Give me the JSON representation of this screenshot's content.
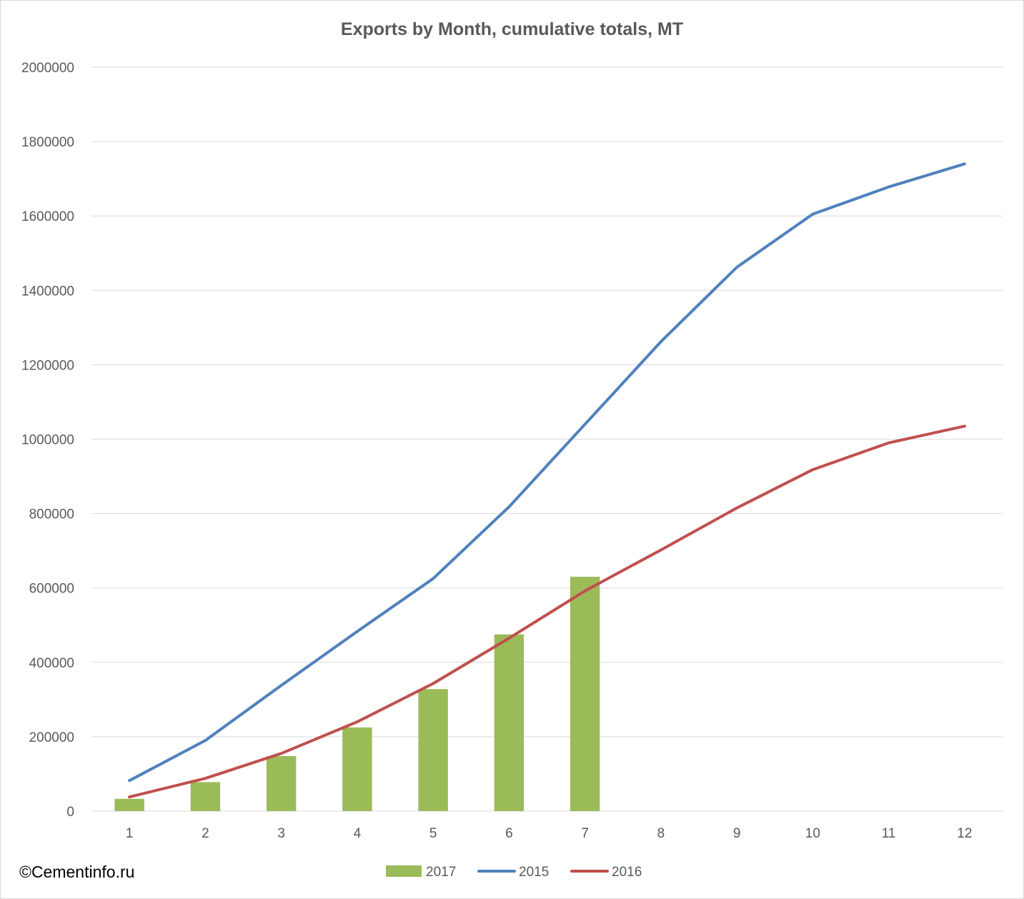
{
  "chart_data": {
    "type": "bar+line",
    "title": "Exports by Month, cumulative totals, MT",
    "xlabel": "",
    "ylabel": "",
    "categories": [
      "1",
      "2",
      "3",
      "4",
      "5",
      "6",
      "7",
      "8",
      "9",
      "10",
      "11",
      "12"
    ],
    "ylim": [
      0,
      2000000
    ],
    "yticks": [
      "0",
      "200000",
      "400000",
      "600000",
      "800000",
      "1000000",
      "1200000",
      "1400000",
      "1600000",
      "1800000",
      "2000000"
    ],
    "grid": true,
    "legend_position": "bottom",
    "series": [
      {
        "name": "2017",
        "type": "bar",
        "color": "#9bbb59",
        "values": [
          33000,
          78000,
          148000,
          225000,
          328000,
          475000,
          630000,
          null,
          null,
          null,
          null,
          null
        ]
      },
      {
        "name": "2015",
        "type": "line",
        "color": "#4f81bd",
        "values": [
          82000,
          190000,
          338000,
          483000,
          625000,
          818000,
          1040000,
          1262000,
          1462000,
          1605000,
          1678000,
          1740000
        ]
      },
      {
        "name": "2016",
        "type": "line",
        "color": "#c0504d",
        "values": [
          38000,
          88000,
          155000,
          240000,
          343000,
          465000,
          592000,
          702000,
          815000,
          918000,
          990000,
          1035000
        ]
      }
    ]
  },
  "source": "©Cementinfo.ru"
}
